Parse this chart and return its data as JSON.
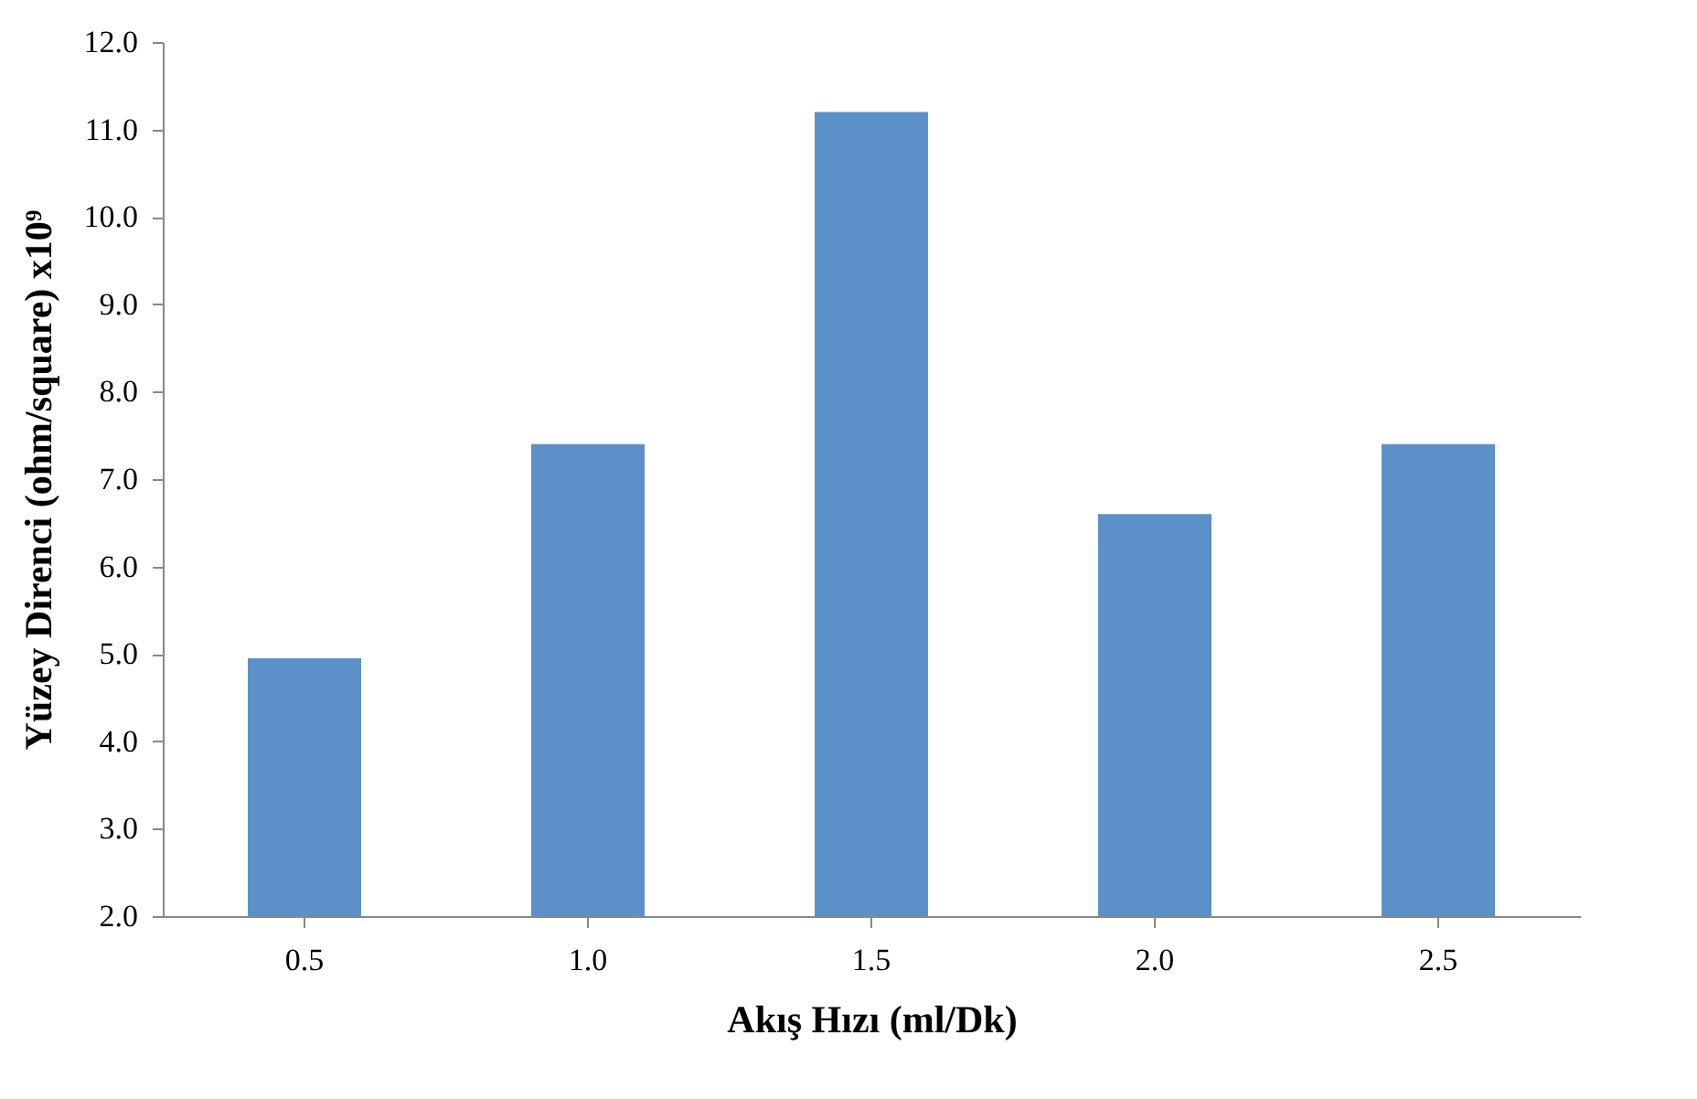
{
  "chart_data": {
    "type": "bar",
    "xlabel": "Akış Hızı (ml/Dk)",
    "ylabel": "Yüzey Direnci (ohm/square) x10⁹",
    "categories": [
      "0.5",
      "1.0",
      "1.5",
      "2.0",
      "2.5"
    ],
    "values": [
      4.95,
      7.4,
      11.2,
      6.6,
      7.4
    ],
    "color": "#5b91c8",
    "ylim": [
      2,
      12
    ],
    "yticks": [
      {
        "value": 2,
        "label": "2.0"
      },
      {
        "value": 3,
        "label": "3.0"
      },
      {
        "value": 4,
        "label": "4.0"
      },
      {
        "value": 5,
        "label": "5.0"
      },
      {
        "value": 6,
        "label": "6.0"
      },
      {
        "value": 7,
        "label": "7.0"
      },
      {
        "value": 8,
        "label": "8.0"
      },
      {
        "value": 9,
        "label": "9.0"
      },
      {
        "value": 10,
        "label": "10.0"
      },
      {
        "value": 11,
        "label": "11.0"
      },
      {
        "value": 12,
        "label": "12.0"
      }
    ],
    "grid": false
  }
}
